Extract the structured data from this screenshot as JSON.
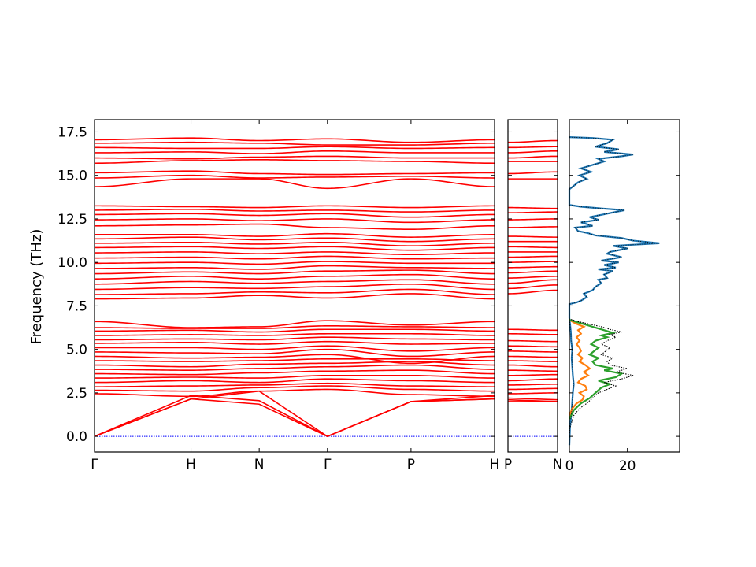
{
  "chart_data": {
    "type": "line",
    "ylabel": "Frequency (THz)",
    "ylim": [
      -0.9,
      18.2
    ],
    "y_ticks": [
      "0.0",
      "2.5",
      "5.0",
      "7.5",
      "10.0",
      "12.5",
      "15.0",
      "17.5"
    ],
    "y_tick_values": [
      0,
      2.5,
      5,
      7.5,
      10,
      12.5,
      15,
      17.5
    ],
    "band_color": "#ff0000",
    "zero_line_color": "#0000ff",
    "segment1": {
      "labels": [
        "Γ",
        "H",
        "N",
        "Γ",
        "P",
        "H"
      ],
      "positions": [
        0,
        1,
        1.707,
        2.414,
        3.28,
        4.146
      ]
    },
    "segment2": {
      "labels": [
        "P",
        "N"
      ],
      "positions": [
        0,
        0.5
      ]
    },
    "acoustic": {
      "segment1": [
        {
          "name": "",
          "y": [
            0,
            2.15,
            2.6,
            0,
            2.0,
            2.15
          ]
        },
        {
          "name": "",
          "y": [
            0,
            2.15,
            1.85,
            0,
            2.0,
            2.15
          ]
        },
        {
          "name": "",
          "y": [
            0,
            2.35,
            2.05,
            0,
            2.0,
            2.35
          ]
        }
      ],
      "segment2": [
        {
          "name": "",
          "y": [
            2.0,
            2.0
          ]
        },
        {
          "name": "",
          "y": [
            2.1,
            2.0
          ]
        },
        {
          "name": "",
          "y": [
            2.2,
            2.1
          ]
        }
      ]
    },
    "bands_seg1": [
      [
        2.45,
        2.3,
        2.6,
        2.7,
        2.4,
        2.3
      ],
      [
        2.65,
        2.6,
        2.8,
        2.9,
        2.7,
        2.6
      ],
      [
        2.85,
        2.9,
        2.95,
        3.05,
        2.9,
        2.85
      ],
      [
        3.1,
        3.2,
        3.1,
        3.3,
        3.2,
        3.1
      ],
      [
        3.35,
        3.4,
        3.35,
        3.5,
        3.5,
        3.35
      ],
      [
        3.6,
        3.55,
        3.65,
        3.75,
        3.8,
        3.6
      ],
      [
        3.85,
        3.8,
        3.9,
        4.0,
        4.1,
        3.85
      ],
      [
        4.1,
        4.0,
        4.15,
        4.2,
        4.3,
        4.1
      ],
      [
        4.35,
        4.3,
        4.35,
        4.45,
        4.45,
        4.35
      ],
      [
        4.6,
        4.5,
        4.55,
        4.7,
        4.2,
        4.6
      ],
      [
        4.85,
        4.8,
        4.75,
        5.0,
        4.6,
        4.85
      ],
      [
        5.1,
        5.1,
        5.0,
        5.2,
        4.9,
        5.1
      ],
      [
        5.35,
        5.4,
        5.3,
        5.45,
        5.3,
        5.35
      ],
      [
        5.55,
        5.6,
        5.55,
        5.7,
        5.6,
        5.55
      ],
      [
        5.8,
        5.85,
        5.8,
        5.9,
        5.9,
        5.8
      ],
      [
        6.05,
        6.1,
        6.0,
        6.15,
        6.15,
        6.05
      ],
      [
        6.25,
        6.2,
        6.2,
        6.35,
        6.3,
        6.25
      ],
      [
        6.6,
        6.25,
        6.3,
        6.65,
        6.4,
        6.6
      ],
      [
        7.9,
        7.95,
        8.1,
        7.95,
        8.2,
        7.9
      ],
      [
        8.15,
        8.2,
        8.3,
        8.25,
        8.45,
        8.15
      ],
      [
        8.45,
        8.55,
        8.5,
        8.6,
        8.75,
        8.45
      ],
      [
        8.75,
        8.9,
        8.8,
        8.9,
        9.0,
        8.75
      ],
      [
        9.05,
        9.2,
        9.05,
        9.2,
        9.3,
        9.05
      ],
      [
        9.35,
        9.45,
        9.35,
        9.5,
        9.55,
        9.35
      ],
      [
        9.65,
        9.7,
        9.6,
        9.8,
        9.7,
        9.65
      ],
      [
        9.95,
        10.0,
        9.9,
        10.05,
        9.95,
        9.95
      ],
      [
        10.25,
        10.3,
        10.2,
        10.35,
        10.2,
        10.25
      ],
      [
        10.55,
        10.6,
        10.5,
        10.6,
        10.45,
        10.55
      ],
      [
        10.85,
        10.9,
        10.8,
        10.9,
        10.7,
        10.85
      ],
      [
        11.1,
        11.15,
        11.05,
        11.15,
        10.95,
        11.1
      ],
      [
        11.35,
        11.45,
        11.3,
        11.4,
        11.2,
        11.35
      ],
      [
        11.6,
        11.6,
        11.5,
        11.65,
        11.45,
        11.6
      ],
      [
        12.1,
        12.15,
        12.2,
        12.0,
        11.9,
        12.1
      ],
      [
        12.45,
        12.5,
        12.4,
        12.5,
        12.3,
        12.45
      ],
      [
        12.75,
        12.8,
        12.7,
        12.8,
        12.6,
        12.75
      ],
      [
        13.0,
        13.05,
        12.95,
        13.0,
        12.9,
        13.0
      ],
      [
        13.25,
        13.2,
        13.15,
        13.25,
        13.15,
        13.25
      ],
      [
        14.35,
        14.8,
        14.8,
        14.25,
        14.8,
        14.35
      ],
      [
        14.85,
        15.0,
        14.85,
        14.9,
        14.95,
        14.85
      ],
      [
        15.15,
        15.25,
        15.1,
        15.05,
        15.1,
        15.15
      ],
      [
        15.7,
        15.85,
        15.9,
        15.85,
        15.8,
        15.7
      ],
      [
        16.0,
        15.95,
        16.05,
        16.1,
        16.0,
        16.0
      ],
      [
        16.3,
        16.35,
        16.25,
        16.4,
        16.3,
        16.3
      ],
      [
        16.6,
        16.55,
        16.55,
        16.65,
        16.55,
        16.6
      ],
      [
        16.85,
        16.9,
        16.85,
        16.75,
        16.75,
        16.85
      ],
      [
        17.05,
        17.15,
        17.0,
        17.1,
        16.9,
        17.05
      ]
    ],
    "bands_seg2": [
      [
        2.45,
        2.5
      ],
      [
        2.7,
        2.75
      ],
      [
        2.95,
        3.0
      ],
      [
        3.2,
        3.3
      ],
      [
        3.5,
        3.55
      ],
      [
        3.8,
        3.75
      ],
      [
        4.1,
        4.0
      ],
      [
        4.35,
        4.3
      ],
      [
        4.6,
        4.55
      ],
      [
        4.9,
        4.85
      ],
      [
        5.2,
        5.15
      ],
      [
        5.5,
        5.45
      ],
      [
        5.9,
        5.85
      ],
      [
        6.15,
        6.1
      ],
      [
        8.2,
        8.4
      ],
      [
        8.5,
        8.7
      ],
      [
        8.8,
        9.0
      ],
      [
        9.1,
        9.2
      ],
      [
        9.4,
        9.5
      ],
      [
        9.7,
        9.75
      ],
      [
        10.0,
        10.05
      ],
      [
        10.3,
        10.35
      ],
      [
        10.6,
        10.6
      ],
      [
        10.9,
        10.85
      ],
      [
        11.2,
        11.2
      ],
      [
        11.5,
        11.45
      ],
      [
        12.0,
        12.05
      ],
      [
        12.45,
        12.5
      ],
      [
        12.85,
        12.9
      ],
      [
        13.15,
        13.1
      ],
      [
        14.8,
        14.8
      ],
      [
        15.1,
        15.2
      ],
      [
        15.8,
        15.8
      ],
      [
        16.0,
        16.1
      ],
      [
        16.3,
        16.4
      ],
      [
        16.6,
        16.65
      ],
      [
        16.9,
        17.0
      ]
    ],
    "dos": {
      "xlim": [
        0,
        38
      ],
      "x_ticks": [
        "0",
        "20"
      ],
      "x_tick_values": [
        0,
        20
      ],
      "series": [
        {
          "name": "",
          "color": "#1f77b4",
          "points": [
            [
              0,
              -0.5
            ],
            [
              0.2,
              0.5
            ],
            [
              0.5,
              1.0
            ],
            [
              0.8,
              1.5
            ],
            [
              1.0,
              2.0
            ],
            [
              1.2,
              2.5
            ],
            [
              1.5,
              3.0
            ],
            [
              1.2,
              3.5
            ],
            [
              1.0,
              4.0
            ],
            [
              0.8,
              4.5
            ],
            [
              1.0,
              5.0
            ],
            [
              0.6,
              5.5
            ],
            [
              0.5,
              6.0
            ],
            [
              0.2,
              6.5
            ],
            [
              0,
              6.8
            ],
            [
              0,
              7.6
            ],
            [
              2.5,
              7.7
            ],
            [
              4.0,
              7.8
            ],
            [
              6.0,
              8.0
            ],
            [
              5.0,
              8.2
            ],
            [
              8.0,
              8.4
            ],
            [
              9.0,
              8.6
            ],
            [
              11.0,
              8.8
            ],
            [
              10.0,
              9.0
            ],
            [
              13.0,
              9.1
            ],
            [
              12.0,
              9.3
            ],
            [
              15.0,
              9.5
            ],
            [
              10.0,
              9.6
            ],
            [
              16.0,
              9.7
            ],
            [
              12.0,
              9.85
            ],
            [
              17.0,
              10.0
            ],
            [
              11.0,
              10.1
            ],
            [
              18.0,
              10.3
            ],
            [
              13.0,
              10.5
            ],
            [
              14.0,
              10.6
            ],
            [
              20.0,
              10.8
            ],
            [
              15.0,
              10.95
            ],
            [
              31.0,
              11.1
            ],
            [
              22.0,
              11.25
            ],
            [
              18.0,
              11.4
            ],
            [
              9.0,
              11.55
            ],
            [
              6.0,
              11.7
            ],
            [
              3.0,
              11.8
            ],
            [
              2.0,
              12.0
            ],
            [
              8.0,
              12.1
            ],
            [
              4.0,
              12.3
            ],
            [
              10.0,
              12.45
            ],
            [
              7.0,
              12.6
            ],
            [
              13.0,
              12.8
            ],
            [
              19.0,
              13.0
            ],
            [
              11.0,
              13.1
            ],
            [
              4.0,
              13.2
            ],
            [
              0,
              13.3
            ],
            [
              0,
              14.2
            ],
            [
              1.5,
              14.4
            ],
            [
              3.0,
              14.6
            ],
            [
              6.0,
              14.8
            ],
            [
              3.5,
              15.0
            ],
            [
              7.5,
              15.2
            ],
            [
              4.0,
              15.4
            ],
            [
              8.0,
              15.6
            ],
            [
              12.0,
              15.8
            ],
            [
              10.0,
              15.95
            ],
            [
              18.0,
              16.1
            ],
            [
              22.0,
              16.2
            ],
            [
              12.0,
              16.35
            ],
            [
              17.0,
              16.5
            ],
            [
              9.0,
              16.65
            ],
            [
              13.0,
              16.85
            ],
            [
              15.0,
              17.05
            ],
            [
              8.0,
              17.15
            ],
            [
              0,
              17.2
            ]
          ]
        },
        {
          "name": "",
          "color": "#ff7f0e",
          "points": [
            [
              0,
              1.2
            ],
            [
              1.0,
              1.6
            ],
            [
              2.5,
              1.9
            ],
            [
              4.5,
              2.1
            ],
            [
              5.0,
              2.3
            ],
            [
              3.5,
              2.5
            ],
            [
              6.0,
              2.7
            ],
            [
              5.5,
              2.9
            ],
            [
              3.0,
              3.1
            ],
            [
              4.0,
              3.3
            ],
            [
              6.5,
              3.5
            ],
            [
              5.0,
              3.7
            ],
            [
              7.0,
              3.9
            ],
            [
              5.5,
              4.1
            ],
            [
              3.5,
              4.3
            ],
            [
              4.5,
              4.5
            ],
            [
              3.0,
              4.7
            ],
            [
              4.0,
              4.9
            ],
            [
              3.5,
              5.1
            ],
            [
              2.5,
              5.3
            ],
            [
              3.5,
              5.5
            ],
            [
              2.5,
              5.7
            ],
            [
              4.0,
              5.9
            ],
            [
              3.0,
              6.1
            ],
            [
              5.0,
              6.3
            ],
            [
              2.0,
              6.5
            ],
            [
              0,
              6.7
            ]
          ]
        },
        {
          "name": "",
          "color": "#2ca02c",
          "points": [
            [
              0,
              1.0
            ],
            [
              1.5,
              1.5
            ],
            [
              4.0,
              1.9
            ],
            [
              7.0,
              2.2
            ],
            [
              9.0,
              2.5
            ],
            [
              11.0,
              2.8
            ],
            [
              14.0,
              3.0
            ],
            [
              10.0,
              3.2
            ],
            [
              16.0,
              3.4
            ],
            [
              18.0,
              3.6
            ],
            [
              12.0,
              3.8
            ],
            [
              15.0,
              3.9
            ],
            [
              9.0,
              4.1
            ],
            [
              8.0,
              4.3
            ],
            [
              10.0,
              4.5
            ],
            [
              7.0,
              4.7
            ],
            [
              8.5,
              4.9
            ],
            [
              10.0,
              5.1
            ],
            [
              7.5,
              5.3
            ],
            [
              9.0,
              5.5
            ],
            [
              13.0,
              5.7
            ],
            [
              11.0,
              5.8
            ],
            [
              15.0,
              5.95
            ],
            [
              12.0,
              6.1
            ],
            [
              9.0,
              6.25
            ],
            [
              6.0,
              6.4
            ],
            [
              3.0,
              6.55
            ],
            [
              0,
              6.7
            ]
          ]
        },
        {
          "name": "",
          "color": "#000000",
          "points": [
            [
              0,
              0.4
            ],
            [
              1.5,
              1.2
            ],
            [
              3.5,
              1.6
            ],
            [
              6.0,
              1.9
            ],
            [
              8.0,
              2.2
            ],
            [
              10.0,
              2.5
            ],
            [
              13.0,
              2.7
            ],
            [
              16.0,
              2.9
            ],
            [
              12.0,
              3.1
            ],
            [
              18.0,
              3.3
            ],
            [
              22.0,
              3.5
            ],
            [
              16.0,
              3.7
            ],
            [
              20.0,
              3.9
            ],
            [
              14.0,
              4.1
            ],
            [
              13.0,
              4.3
            ],
            [
              15.0,
              4.5
            ],
            [
              11.0,
              4.7
            ],
            [
              12.5,
              4.9
            ],
            [
              14.0,
              5.1
            ],
            [
              11.0,
              5.3
            ],
            [
              13.0,
              5.5
            ],
            [
              16.0,
              5.7
            ],
            [
              14.0,
              5.85
            ],
            [
              18.0,
              6.0
            ],
            [
              14.0,
              6.15
            ],
            [
              11.0,
              6.3
            ],
            [
              7.0,
              6.45
            ],
            [
              3.0,
              6.6
            ],
            [
              0,
              6.75
            ]
          ]
        }
      ]
    }
  }
}
